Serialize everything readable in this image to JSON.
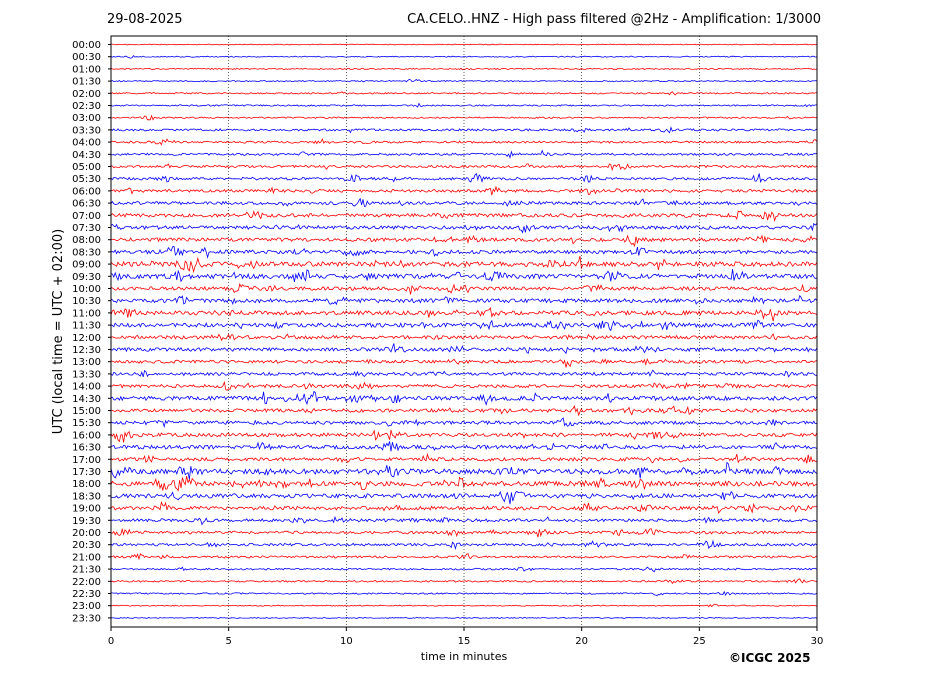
{
  "header": {
    "date": "29-08-2025",
    "title": "CA.CELO..HNZ - High pass filtered @2Hz - Amplification: 1/3000"
  },
  "footer": {
    "copyright": "©ICGC 2025"
  },
  "chart_data": {
    "type": "line",
    "title": "CA.CELO..HNZ - High pass filtered @2Hz - Amplification: 1/3000",
    "xlabel": "time in minutes",
    "ylabel": "UTC (local time = UTC + 02:00)",
    "xlim": [
      0,
      30
    ],
    "x_ticks": [
      0,
      5,
      10,
      15,
      20,
      25,
      30
    ],
    "grid": "vertical dotted lines at 5-minute intervals",
    "row_colors": [
      "#ff0000",
      "#0000ff"
    ],
    "rows": [
      {
        "label": "00:00",
        "color": "red",
        "activity": 0
      },
      {
        "label": "00:30",
        "color": "blue",
        "activity": 0.05
      },
      {
        "label": "01:00",
        "color": "red",
        "activity": 0.1
      },
      {
        "label": "01:30",
        "color": "blue",
        "activity": 0.1
      },
      {
        "label": "02:00",
        "color": "red",
        "activity": 0.15
      },
      {
        "label": "02:30",
        "color": "blue",
        "activity": 0.15
      },
      {
        "label": "03:00",
        "color": "red",
        "activity": 0.15
      },
      {
        "label": "03:30",
        "color": "blue",
        "activity": 0.3
      },
      {
        "label": "04:00",
        "color": "red",
        "activity": 0.3
      },
      {
        "label": "04:30",
        "color": "blue",
        "activity": 0.3
      },
      {
        "label": "05:00",
        "color": "red",
        "activity": 0.35
      },
      {
        "label": "05:30",
        "color": "blue",
        "activity": 0.4
      },
      {
        "label": "06:00",
        "color": "red",
        "activity": 0.45
      },
      {
        "label": "06:30",
        "color": "blue",
        "activity": 0.5
      },
      {
        "label": "07:00",
        "color": "red",
        "activity": 0.6
      },
      {
        "label": "07:30",
        "color": "blue",
        "activity": 0.6
      },
      {
        "label": "08:00",
        "color": "red",
        "activity": 0.6
      },
      {
        "label": "08:30",
        "color": "blue",
        "activity": 0.65
      },
      {
        "label": "09:00",
        "color": "red",
        "activity": 0.9
      },
      {
        "label": "09:30",
        "color": "blue",
        "activity": 0.85
      },
      {
        "label": "10:00",
        "color": "red",
        "activity": 0.6
      },
      {
        "label": "10:30",
        "color": "blue",
        "activity": 0.7
      },
      {
        "label": "11:00",
        "color": "red",
        "activity": 0.75
      },
      {
        "label": "11:30",
        "color": "blue",
        "activity": 0.75
      },
      {
        "label": "12:00",
        "color": "red",
        "activity": 0.6
      },
      {
        "label": "12:30",
        "color": "blue",
        "activity": 0.6
      },
      {
        "label": "13:00",
        "color": "red",
        "activity": 0.5
      },
      {
        "label": "13:30",
        "color": "blue",
        "activity": 0.5
      },
      {
        "label": "14:00",
        "color": "red",
        "activity": 0.55
      },
      {
        "label": "14:30",
        "color": "blue",
        "activity": 0.75
      },
      {
        "label": "15:00",
        "color": "red",
        "activity": 0.6
      },
      {
        "label": "15:30",
        "color": "blue",
        "activity": 0.6
      },
      {
        "label": "16:00",
        "color": "red",
        "activity": 0.65
      },
      {
        "label": "16:30",
        "color": "blue",
        "activity": 0.65
      },
      {
        "label": "17:00",
        "color": "red",
        "activity": 0.6
      },
      {
        "label": "17:30",
        "color": "blue",
        "activity": 0.95
      },
      {
        "label": "18:00",
        "color": "red",
        "activity": 0.9
      },
      {
        "label": "18:30",
        "color": "blue",
        "activity": 0.75
      },
      {
        "label": "19:00",
        "color": "red",
        "activity": 0.65
      },
      {
        "label": "19:30",
        "color": "blue",
        "activity": 0.5
      },
      {
        "label": "20:00",
        "color": "red",
        "activity": 0.45
      },
      {
        "label": "20:30",
        "color": "blue",
        "activity": 0.4
      },
      {
        "label": "21:00",
        "color": "red",
        "activity": 0.3
      },
      {
        "label": "21:30",
        "color": "blue",
        "activity": 0.2
      },
      {
        "label": "22:00",
        "color": "red",
        "activity": 0.2
      },
      {
        "label": "22:30",
        "color": "blue",
        "activity": 0.15
      },
      {
        "label": "23:00",
        "color": "red",
        "activity": 0.05
      },
      {
        "label": "23:30",
        "color": "blue",
        "activity": 0.03
      }
    ]
  }
}
